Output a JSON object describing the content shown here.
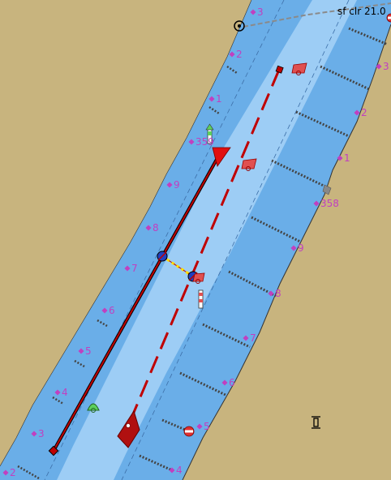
{
  "map": {
    "bridge_label": "sf clr 21.0",
    "colors": {
      "land": "#c8b47e",
      "water_shallow": "#6aaee8",
      "water_deep": "#9dcdf5",
      "channel_line": "#2b7ecf",
      "route_red": "#c00000",
      "mark_magenta": "#c040c0",
      "buoy_red": "#e05050",
      "buoy_green": "#5cd05c"
    },
    "left_bank_marks": [
      "3",
      "2",
      "1",
      "359",
      "9",
      "8",
      "7",
      "6",
      "5",
      "4",
      "3",
      "2"
    ],
    "right_bank_marks": [
      "3",
      "2",
      "1",
      "358",
      "9",
      "8",
      "7",
      "6",
      "5",
      "4"
    ],
    "icons": [
      "vessel-icon",
      "anchor-icon",
      "waypoint-icon",
      "green-buoy-icon",
      "red-buoy-icon",
      "danger-buoy-icon",
      "mooring-icon"
    ]
  }
}
